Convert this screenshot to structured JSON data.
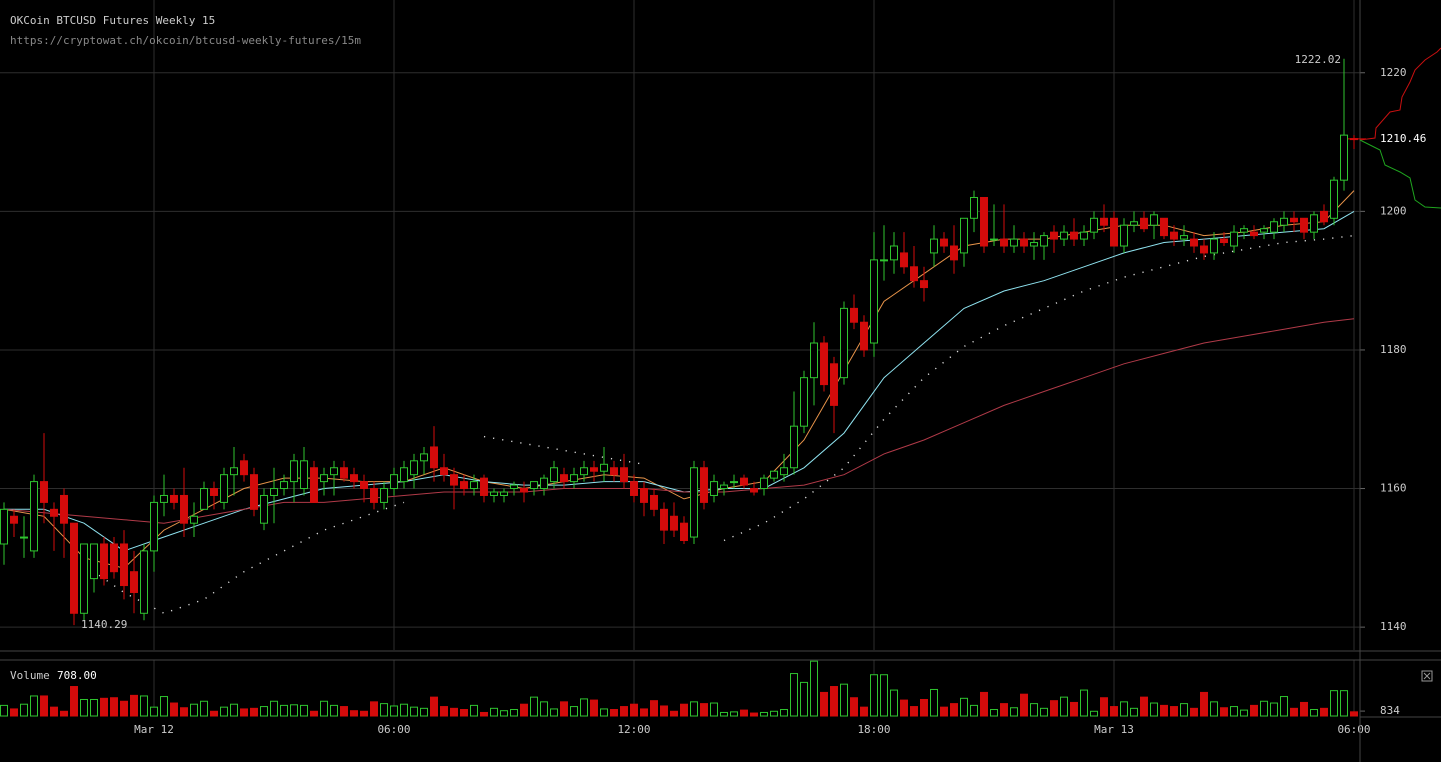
{
  "chart_data": {
    "type": "candlestick",
    "title": "OKCoin BTCUSD Futures Weekly 15",
    "subtitle": "https://cryptowat.ch/okcoin/btcusd-weekly-futures/15m",
    "xlim": [
      -3.85,
      30.15
    ],
    "xticks": [
      {
        "value": 0,
        "label": "Mar 12"
      },
      {
        "value": 6,
        "label": "06:00"
      },
      {
        "value": 12,
        "label": "12:00"
      },
      {
        "value": 18,
        "label": "18:00"
      },
      {
        "value": 24,
        "label": "Mar 13"
      },
      {
        "value": 30,
        "label": "06:00"
      }
    ],
    "ylim": [
      1136.7,
      1230.5
    ],
    "yticks": [
      1140,
      1160,
      1180,
      1200,
      1220
    ],
    "grid": true,
    "up_color": "#2fc42f",
    "down_color": "#d40b0b",
    "candles": {
      "x": [
        -3.75,
        -3.5,
        -3.25,
        -3,
        -2.75,
        -2.5,
        -2.25,
        -2,
        -1.75,
        -1.5,
        -1.25,
        -1,
        -0.75,
        -0.5,
        -0.25,
        0,
        0.25,
        0.5,
        0.75,
        1,
        1.25,
        1.5,
        1.75,
        2,
        2.25,
        2.5,
        2.75,
        3,
        3.25,
        3.5,
        3.75,
        4,
        4.25,
        4.5,
        4.75,
        5,
        5.25,
        5.5,
        5.75,
        6,
        6.25,
        6.5,
        6.75,
        7,
        7.25,
        7.5,
        7.75,
        8,
        8.25,
        8.5,
        8.75,
        9,
        9.25,
        9.5,
        9.75,
        10,
        10.25,
        10.5,
        10.75,
        11,
        11.25,
        11.5,
        11.75,
        12,
        12.25,
        12.5,
        12.75,
        13,
        13.25,
        13.5,
        13.75,
        14,
        14.25,
        14.5,
        14.75,
        15,
        15.25,
        15.5,
        15.75,
        16,
        16.25,
        16.5,
        16.75,
        17,
        17.25,
        17.5,
        17.75,
        18,
        18.25,
        18.5,
        18.75,
        19,
        19.25,
        19.5,
        19.75,
        20,
        20.25,
        20.5,
        20.75,
        21,
        21.25,
        21.5,
        21.75,
        22,
        22.25,
        22.5,
        22.75,
        23,
        23.25,
        23.5,
        23.75,
        24,
        24.25,
        24.5,
        24.75,
        25,
        25.25,
        25.5,
        25.75,
        26,
        26.25,
        26.5,
        26.75,
        27,
        27.25,
        27.5,
        27.75,
        28,
        28.25,
        28.5,
        28.75,
        29,
        29.25,
        29.5,
        29.75,
        30
      ],
      "open": [
        1152,
        1156,
        1153,
        1151,
        1161,
        1157,
        1159,
        1155,
        1142,
        1147,
        1152,
        1152,
        1152,
        1148,
        1142,
        1151,
        1158,
        1159,
        1159,
        1155,
        1157,
        1160,
        1158,
        1162,
        1164,
        1162,
        1155,
        1159,
        1160,
        1161,
        1160,
        1163,
        1161,
        1162,
        1163,
        1162,
        1161,
        1160,
        1158,
        1160,
        1161,
        1162,
        1164,
        1166,
        1163,
        1162,
        1161,
        1160,
        1161.5,
        1159,
        1159,
        1160,
        1160,
        1160,
        1160,
        1161,
        1162,
        1161,
        1162,
        1163,
        1162.5,
        1163,
        1163,
        1161,
        1160,
        1159,
        1157,
        1156,
        1155,
        1153,
        1163,
        1159,
        1160,
        1161,
        1161.5,
        1160,
        1160,
        1161.5,
        1162,
        1163,
        1169,
        1176,
        1181,
        1178,
        1176,
        1186,
        1184,
        1181,
        1193,
        1193,
        1194,
        1192,
        1190,
        1194,
        1196,
        1195,
        1194,
        1199,
        1202,
        1196,
        1196,
        1195,
        1196,
        1195,
        1195,
        1197,
        1196,
        1197,
        1196,
        1197,
        1199,
        1199,
        1195,
        1198,
        1199,
        1198,
        1199,
        1197,
        1196,
        1196,
        1195,
        1194,
        1196,
        1195,
        1197,
        1197,
        1197,
        1197,
        1198,
        1199,
        1199,
        1197,
        1200,
        1199,
        1204.5,
        1210.5
      ],
      "high": [
        1158,
        1157,
        1156,
        1162,
        1168,
        1158,
        1160,
        1155,
        1152,
        1152,
        1153,
        1153,
        1154,
        1151,
        1152,
        1159,
        1162,
        1160,
        1163,
        1158,
        1161,
        1161,
        1163,
        1166,
        1165,
        1163,
        1160,
        1163,
        1162,
        1165,
        1166,
        1164,
        1163,
        1164,
        1164,
        1163,
        1162,
        1161,
        1161,
        1163,
        1164,
        1165,
        1166,
        1169,
        1165,
        1163,
        1162,
        1162,
        1162,
        1160,
        1160,
        1161,
        1161,
        1161,
        1162,
        1164,
        1163,
        1163,
        1164,
        1164,
        1166,
        1164,
        1165,
        1162,
        1161,
        1160,
        1158,
        1158,
        1156,
        1164,
        1164,
        1162,
        1161,
        1162,
        1162,
        1161,
        1162,
        1162,
        1165,
        1174,
        1177,
        1184,
        1182,
        1179,
        1187,
        1188,
        1185,
        1197,
        1198,
        1197,
        1197,
        1195,
        1192,
        1198,
        1197,
        1198,
        1199,
        1203,
        1202,
        1201,
        1201,
        1198,
        1197,
        1197,
        1197,
        1198,
        1198,
        1199,
        1198,
        1200,
        1201,
        1200,
        1199,
        1200,
        1200,
        1200,
        1199,
        1198,
        1198,
        1197,
        1196,
        1197,
        1197,
        1198,
        1198,
        1198,
        1198,
        1199,
        1200,
        1200,
        1199,
        1200,
        1201,
        1205,
        1222.02,
        1211
      ],
      "low": [
        1149,
        1153,
        1150,
        1150,
        1155,
        1151,
        1150,
        1140.29,
        1141,
        1145,
        1146,
        1147,
        1144,
        1142,
        1141,
        1148,
        1156,
        1157,
        1153,
        1153,
        1157,
        1157,
        1157,
        1159,
        1161,
        1156,
        1154,
        1155,
        1159,
        1158,
        1159,
        1158,
        1159,
        1159,
        1161,
        1160,
        1158,
        1157,
        1157,
        1159,
        1160,
        1160,
        1162,
        1161,
        1161,
        1157,
        1159,
        1159,
        1158,
        1158,
        1158,
        1159,
        1158,
        1159,
        1159,
        1160,
        1160,
        1160,
        1161,
        1161,
        1161,
        1161,
        1160,
        1158,
        1156,
        1156,
        1152,
        1153,
        1152,
        1152,
        1157,
        1158,
        1159,
        1160,
        1160,
        1159,
        1159,
        1161,
        1161,
        1162,
        1168,
        1172,
        1174,
        1168,
        1175,
        1183,
        1179,
        1179,
        1190,
        1191,
        1191,
        1189,
        1187,
        1192,
        1194,
        1191,
        1192,
        1197,
        1194,
        1195,
        1194,
        1194,
        1194,
        1193,
        1193,
        1194,
        1195,
        1195,
        1195,
        1196,
        1197,
        1195,
        1194,
        1197,
        1197,
        1196,
        1196,
        1195,
        1195,
        1194,
        1193,
        1193,
        1195,
        1194,
        1196,
        1196,
        1196,
        1196,
        1197,
        1197,
        1196,
        1196,
        1198,
        1198,
        1203,
        1209
      ],
      "close": [
        1157,
        1155,
        1153,
        1161,
        1158,
        1156,
        1155,
        1142,
        1152,
        1152,
        1147,
        1148,
        1146,
        1145,
        1151,
        1158,
        1159,
        1158,
        1155,
        1156,
        1160,
        1159,
        1162,
        1163,
        1162,
        1157,
        1159,
        1160,
        1161,
        1164,
        1164,
        1158,
        1162,
        1163,
        1161.5,
        1161,
        1160,
        1158,
        1160,
        1162,
        1163,
        1164,
        1165,
        1163,
        1162,
        1160.5,
        1160,
        1161,
        1159,
        1159.5,
        1159.5,
        1160.5,
        1159.5,
        1161,
        1161.5,
        1163,
        1161,
        1162,
        1163,
        1162.5,
        1163.5,
        1162,
        1161,
        1159,
        1158,
        1157,
        1154,
        1154,
        1152.5,
        1163,
        1158,
        1161,
        1160.5,
        1161,
        1160.5,
        1159.5,
        1161.5,
        1162.5,
        1163,
        1169,
        1176,
        1181,
        1175,
        1172,
        1186,
        1184,
        1180,
        1193,
        1193,
        1195,
        1192,
        1190,
        1189,
        1196,
        1195,
        1193,
        1199,
        1202,
        1195,
        1196,
        1195,
        1196,
        1195,
        1195.5,
        1196.5,
        1196,
        1197,
        1196,
        1197,
        1199,
        1198,
        1195,
        1198,
        1198.5,
        1197.5,
        1199.5,
        1196.5,
        1196,
        1196.5,
        1195,
        1194,
        1196,
        1195.5,
        1197,
        1197.5,
        1196.5,
        1197.5,
        1198.5,
        1199,
        1198.5,
        1197,
        1199.5,
        1198.5,
        1204.5,
        1211,
        1210.46
      ]
    },
    "lines": [
      {
        "color": "#e8944a",
        "x": [
          -3.75,
          -2.75,
          -1.75,
          -0.75,
          0.25,
          1.25,
          2.25,
          3.25,
          4.25,
          5.25,
          6.25,
          7.25,
          8.25,
          9.25,
          10.25,
          11.25,
          12.25,
          13.25,
          14.25,
          15.25,
          16.25,
          17.25,
          18.25,
          19.25,
          20.25,
          21.25,
          22.25,
          23.25,
          24.25,
          25.25,
          26.25,
          27.25,
          28.25,
          29.25,
          30
        ],
        "values": [
          1157,
          1156,
          1150,
          1148.5,
          1154,
          1157,
          1160,
          1161.5,
          1161.5,
          1161,
          1161,
          1163,
          1161,
          1160,
          1161,
          1162,
          1161.5,
          1158.5,
          1160,
          1161,
          1167,
          1177,
          1187,
          1191,
          1195,
          1196,
          1196,
          1197,
          1198,
          1198,
          1196.5,
          1197,
          1198,
          1198.5,
          1203
        ]
      },
      {
        "color": "#8fe3f0",
        "x": [
          -3.75,
          -2.75,
          -1.75,
          -0.75,
          0.25,
          1.25,
          2.25,
          3.25,
          4.25,
          5.25,
          6.25,
          7.25,
          8.25,
          9.25,
          10.25,
          11.25,
          12.25,
          13.25,
          14.25,
          15.25,
          16.25,
          17.25,
          18.25,
          19.25,
          20.25,
          21.25,
          22.25,
          23.25,
          24.25,
          25.25,
          26.25,
          27.25,
          28.25,
          29.25,
          30
        ],
        "values": [
          1157,
          1157,
          1155,
          1151,
          1153,
          1155,
          1157,
          1158.5,
          1160,
          1160.5,
          1161,
          1162,
          1161,
          1160.5,
          1160.5,
          1161,
          1161,
          1159.5,
          1160,
          1160,
          1163,
          1168,
          1176,
          1181,
          1186,
          1188.5,
          1190,
          1192,
          1194,
          1195.5,
          1196,
          1196.5,
          1197,
          1197.5,
          1200
        ]
      },
      {
        "color": "#b03a48",
        "x": [
          -3.75,
          -2.75,
          -1.75,
          -0.75,
          0.25,
          1.25,
          2.25,
          3.25,
          4.25,
          5.25,
          6.25,
          7.25,
          8.25,
          9.25,
          10.25,
          11.25,
          12.25,
          13.25,
          14.25,
          15.25,
          16.25,
          17.25,
          18.25,
          19.25,
          20.25,
          21.25,
          22.25,
          23.25,
          24.25,
          25.25,
          26.25,
          27.25,
          28.25,
          29.25,
          30
        ],
        "values": [
          1157,
          1156.5,
          1156,
          1155.5,
          1155,
          1156,
          1157,
          1158,
          1158,
          1158.5,
          1159,
          1159.5,
          1159.5,
          1159.5,
          1160,
          1160,
          1160,
          1159.5,
          1159.5,
          1160,
          1160.5,
          1162,
          1165,
          1167,
          1169.5,
          1172,
          1174,
          1176,
          1178,
          1179.5,
          1181,
          1182,
          1183,
          1184,
          1184.5
        ]
      },
      {
        "color": "#dddddd",
        "dotted": true,
        "x": [
          -3.75,
          -2.75,
          -1.75,
          -0.75,
          0.25,
          1.25,
          2.25,
          3.25,
          4.25,
          5.25,
          6.25,
          7.25,
          8.25,
          9.25,
          10.25,
          11.25,
          12.25,
          13.25,
          14.25,
          15.25,
          16.25,
          17.25,
          18.25,
          19.25,
          20.25,
          21.25,
          22.25,
          23.25,
          24.25,
          25.25,
          26.25,
          27.25,
          28.25,
          29.25,
          30
        ],
        "values": [
          1160.5,
          null,
          1149,
          1145,
          1142,
          1144,
          1148,
          1151,
          1154,
          1156,
          1158,
          null,
          1167.5,
          1166.5,
          1165.5,
          1164.5,
          1163.5,
          null,
          1152.5,
          1155,
          1158.5,
          1163,
          1170,
          1176,
          1180.5,
          1183.5,
          1186,
          1188.5,
          1190.5,
          1192,
          1193.5,
          1194.5,
          1195.5,
          1196,
          1196.5
        ]
      }
    ],
    "volume": {
      "name": "Volume",
      "current_label": "708.00",
      "ylim": [
        0,
        9500
      ],
      "yticks": [
        834
      ],
      "values": [
        1800,
        1200,
        2000,
        3400,
        3400,
        1500,
        800,
        5000,
        2800,
        2800,
        3000,
        3100,
        2500,
        3500,
        3400,
        1500,
        3300,
        2200,
        1400,
        2000,
        2500,
        800,
        1500,
        2000,
        1200,
        1300,
        1600,
        2500,
        1800,
        1900,
        1800,
        800,
        2500,
        1800,
        1600,
        900,
        800,
        2400,
        2100,
        1700,
        2000,
        1500,
        1300,
        3200,
        1600,
        1300,
        1100,
        1800,
        600,
        1300,
        900,
        1100,
        2000,
        3200,
        2400,
        1200,
        2400,
        1600,
        2900,
        2700,
        1200,
        1100,
        1600,
        2000,
        1200,
        2600,
        1700,
        800,
        2000,
        2400,
        2100,
        2200,
        600,
        700,
        1000,
        500,
        600,
        800,
        1100,
        7200,
        5700,
        9300,
        4000,
        5000,
        5400,
        3100,
        1500,
        7000,
        7000,
        4400,
        2700,
        1600,
        2800,
        4500,
        1500,
        2100,
        3000,
        1800,
        4000,
        1100,
        2100,
        1400,
        3700,
        2100,
        1300,
        2600,
        3200,
        2300,
        4400,
        800,
        3100,
        1600,
        2400,
        1300,
        3200,
        2200,
        1800,
        1600,
        2100,
        1300,
        4000,
        2400,
        1400,
        1600,
        1000,
        1800,
        2500,
        2200,
        3300,
        1300,
        2300,
        1100,
        1300,
        4300,
        4300,
        708
      ]
    }
  }
}
